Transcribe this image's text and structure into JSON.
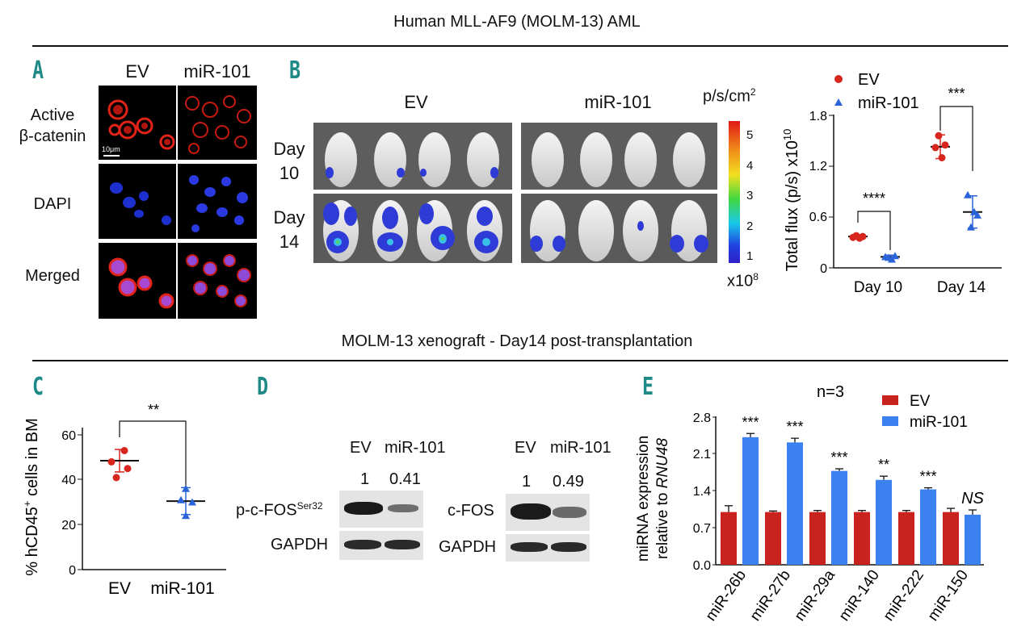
{
  "header_top": "Human MLL-AF9 (MOLM-13) AML",
  "header_mid": "MOLM-13 xenograft - Day14 post-transplantation",
  "panel_A": {
    "label": "A",
    "columns": [
      "EV",
      "miR-101"
    ],
    "rows": [
      "Active\nβ-catenin",
      "DAPI",
      "Merged"
    ],
    "scale_bar": "10μm"
  },
  "panel_B": {
    "label": "B",
    "groups": [
      "EV",
      "miR-101"
    ],
    "days": [
      "Day\n10",
      "Day\n14"
    ],
    "colorbar_unit": "p/s/cm",
    "colorbar_unit_sup": "2",
    "colorbar_ticks": [
      "5",
      "4",
      "3",
      "2",
      "1"
    ],
    "colorbar_scale": "x10",
    "colorbar_scale_sup": "8",
    "chart": {
      "ylabel": "Total flux (p/s) x10",
      "ylabel_sup": "10",
      "categories": [
        "Day 10",
        "Day 14"
      ],
      "yticks": [
        "0",
        "0.6",
        "1.2",
        "1.8"
      ],
      "legend": [
        "EV",
        "miR-101"
      ],
      "sig": [
        "****",
        "***"
      ]
    }
  },
  "panel_C": {
    "label": "C",
    "ylabel": "% hCD45",
    "ylabel_sup": "+",
    "ylabel_rest": " cells in BM",
    "yticks": [
      "0",
      "20",
      "40",
      "60"
    ],
    "categories": [
      "EV",
      "miR-101"
    ],
    "sig": "**"
  },
  "panel_D": {
    "label": "D",
    "left": {
      "cols": [
        "EV",
        "miR-101"
      ],
      "values": [
        "1",
        "0.41"
      ],
      "row1": "p-c-FOS",
      "row1_sup": "Ser32",
      "row2": "GAPDH"
    },
    "right": {
      "cols": [
        "EV",
        "miR-101"
      ],
      "values": [
        "1",
        "0.49"
      ],
      "row1": "c-FOS",
      "row2": "GAPDH"
    }
  },
  "panel_E": {
    "label": "E",
    "n_label": "n=3",
    "ylabel1": "miRNA expression",
    "ylabel2": "relative to ",
    "ylabel2_italic": "RNU48",
    "yticks": [
      "0.0",
      "0.7",
      "1.4",
      "2.1",
      "2.8"
    ],
    "legend": [
      "EV",
      "miR-101"
    ]
  },
  "chart_data": [
    {
      "type": "scatter",
      "title": "",
      "ylabel": "Total flux (p/s) x10^10",
      "categories": [
        "Day 10",
        "Day 14"
      ],
      "ylim": [
        0,
        1.8
      ],
      "series": [
        {
          "name": "EV",
          "color": "#d7261e",
          "marker": "circle",
          "points": [
            [
              0.36,
              0.38,
              0.35,
              0.37
            ],
            [
              1.42,
              1.56,
              1.3,
              1.45
            ]
          ],
          "mean": [
            0.37,
            1.43
          ],
          "sd": [
            0.02,
            0.14
          ]
        },
        {
          "name": "miR-101",
          "color": "#2b64d8",
          "marker": "triangle",
          "points": [
            [
              0.13,
              0.12,
              0.1,
              0.14
            ],
            [
              0.86,
              0.48,
              0.66,
              0.62
            ]
          ],
          "mean": [
            0.13,
            0.66
          ],
          "sd": [
            0.02,
            0.19
          ]
        }
      ],
      "significance": [
        "****",
        "***"
      ]
    },
    {
      "type": "scatter",
      "ylabel": "% hCD45+ cells in BM",
      "categories": [
        "EV",
        "miR-101"
      ],
      "ylim": [
        0,
        60
      ],
      "series": [
        {
          "name": "EV",
          "color": "#d7261e",
          "marker": "circle",
          "points": [
            53,
            48,
            45,
            41
          ],
          "mean": 48.5,
          "sd": 5
        },
        {
          "name": "miR-101",
          "color": "#2b64d8",
          "marker": "triangle",
          "points": [
            36,
            31,
            30,
            24
          ],
          "mean": 30.5,
          "sd": 6
        }
      ],
      "significance": "**"
    },
    {
      "type": "bar",
      "title": "n=3",
      "ylabel": "miRNA expression relative to RNU48",
      "categories": [
        "miR-26b",
        "miR-27b",
        "miR-29a",
        "miR-140",
        "miR-222",
        "miR-150"
      ],
      "ylim": [
        0,
        2.8
      ],
      "series": [
        {
          "name": "EV",
          "color": "#c8231e",
          "values": [
            1.0,
            1.0,
            1.0,
            1.0,
            1.0,
            1.0
          ],
          "err": [
            0.12,
            0.02,
            0.03,
            0.03,
            0.03,
            0.07
          ]
        },
        {
          "name": "miR-101",
          "color": "#3b82f0",
          "values": [
            2.42,
            2.32,
            1.78,
            1.61,
            1.43,
            0.95
          ],
          "err": [
            0.07,
            0.08,
            0.04,
            0.07,
            0.03,
            0.09
          ]
        }
      ],
      "significance": [
        "***",
        "***",
        "***",
        "**",
        "***",
        "NS"
      ]
    }
  ]
}
